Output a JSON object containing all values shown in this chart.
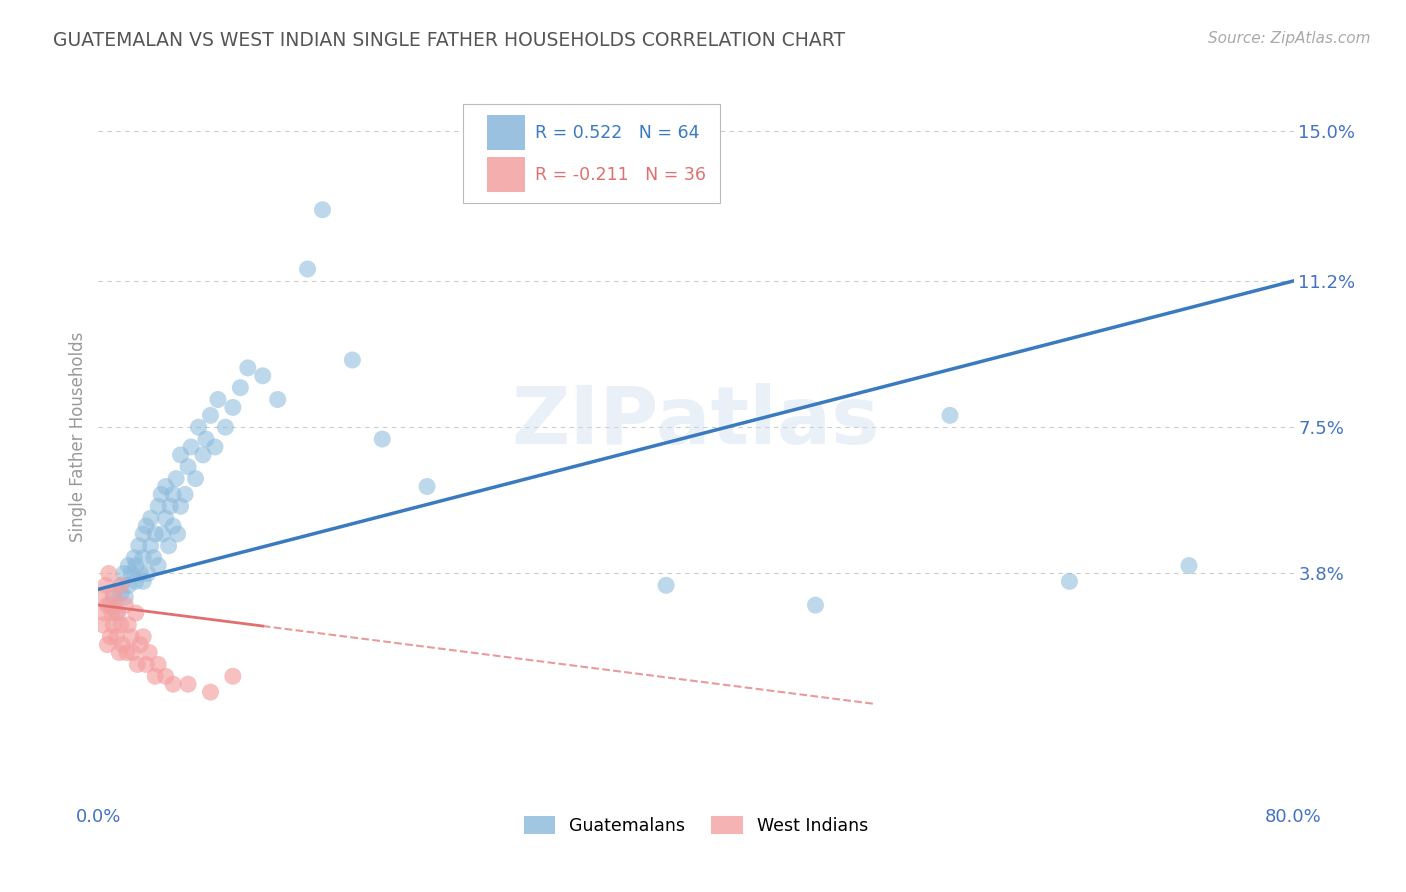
{
  "title": "GUATEMALAN VS WEST INDIAN SINGLE FATHER HOUSEHOLDS CORRELATION CHART",
  "source": "Source: ZipAtlas.com",
  "ylabel": "Single Father Households",
  "xlim": [
    0.0,
    0.8
  ],
  "ylim": [
    -0.02,
    0.165
  ],
  "blue_color": "#89b8db",
  "pink_color": "#f4a0a0",
  "blue_line_color": "#3a7abf",
  "pink_line_color": "#e07070",
  "legend_blue_label": "Guatemalans",
  "legend_pink_label": "West Indians",
  "R_blue": 0.522,
  "N_blue": 64,
  "R_pink": -0.211,
  "N_pink": 36,
  "watermark": "ZIPatlas",
  "blue_scatter_x": [
    0.008,
    0.01,
    0.012,
    0.015,
    0.015,
    0.017,
    0.018,
    0.02,
    0.02,
    0.022,
    0.024,
    0.025,
    0.025,
    0.027,
    0.028,
    0.03,
    0.03,
    0.03,
    0.032,
    0.033,
    0.035,
    0.035,
    0.037,
    0.038,
    0.04,
    0.04,
    0.042,
    0.043,
    0.045,
    0.045,
    0.047,
    0.048,
    0.05,
    0.05,
    0.052,
    0.053,
    0.055,
    0.055,
    0.058,
    0.06,
    0.062,
    0.065,
    0.067,
    0.07,
    0.072,
    0.075,
    0.078,
    0.08,
    0.085,
    0.09,
    0.095,
    0.1,
    0.11,
    0.12,
    0.14,
    0.15,
    0.17,
    0.19,
    0.22,
    0.38,
    0.48,
    0.57,
    0.65,
    0.73
  ],
  "blue_scatter_y": [
    0.03,
    0.032,
    0.028,
    0.035,
    0.033,
    0.038,
    0.032,
    0.04,
    0.035,
    0.038,
    0.042,
    0.036,
    0.04,
    0.045,
    0.038,
    0.042,
    0.048,
    0.036,
    0.05,
    0.038,
    0.045,
    0.052,
    0.042,
    0.048,
    0.055,
    0.04,
    0.058,
    0.048,
    0.052,
    0.06,
    0.045,
    0.055,
    0.05,
    0.058,
    0.062,
    0.048,
    0.055,
    0.068,
    0.058,
    0.065,
    0.07,
    0.062,
    0.075,
    0.068,
    0.072,
    0.078,
    0.07,
    0.082,
    0.075,
    0.08,
    0.085,
    0.09,
    0.088,
    0.082,
    0.115,
    0.13,
    0.092,
    0.072,
    0.06,
    0.035,
    0.03,
    0.078,
    0.036,
    0.04
  ],
  "pink_scatter_x": [
    0.002,
    0.003,
    0.004,
    0.005,
    0.006,
    0.006,
    0.007,
    0.008,
    0.009,
    0.01,
    0.01,
    0.011,
    0.012,
    0.013,
    0.014,
    0.015,
    0.015,
    0.016,
    0.018,
    0.019,
    0.02,
    0.022,
    0.023,
    0.025,
    0.026,
    0.028,
    0.03,
    0.032,
    0.034,
    0.038,
    0.04,
    0.045,
    0.05,
    0.06,
    0.075,
    0.09
  ],
  "pink_scatter_y": [
    0.032,
    0.025,
    0.028,
    0.035,
    0.02,
    0.03,
    0.038,
    0.022,
    0.028,
    0.033,
    0.025,
    0.03,
    0.022,
    0.028,
    0.018,
    0.035,
    0.025,
    0.02,
    0.03,
    0.018,
    0.025,
    0.022,
    0.018,
    0.028,
    0.015,
    0.02,
    0.022,
    0.015,
    0.018,
    0.012,
    0.015,
    0.012,
    0.01,
    0.01,
    0.008,
    0.012
  ],
  "blue_line_x0": 0.0,
  "blue_line_y0": 0.034,
  "blue_line_x1": 0.8,
  "blue_line_y1": 0.112,
  "pink_line_x0": 0.0,
  "pink_line_y0": 0.03,
  "pink_line_x1": 0.52,
  "pink_line_y1": 0.005,
  "background_color": "#ffffff",
  "grid_color": "#cccccc",
  "title_color": "#555555",
  "tick_label_color": "#4472c4",
  "ytick_vals": [
    0.038,
    0.075,
    0.112,
    0.15
  ],
  "ytick_labels": [
    "3.8%",
    "7.5%",
    "11.2%",
    "15.0%"
  ]
}
